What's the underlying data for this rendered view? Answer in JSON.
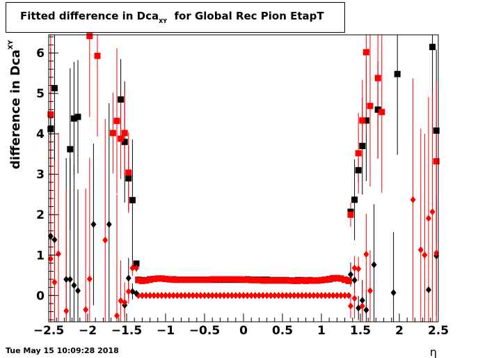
{
  "title": {
    "main": "Fitted difference in Dca",
    "sub": "XY",
    "suffix": "  for Global Rec Pion EtapT"
  },
  "timestamp": "Tue May 15 10:09:28 2018",
  "chart_data": {
    "type": "scatter",
    "xlabel": "η",
    "ylabel": {
      "main": "difference in Dca",
      "sub": "XY"
    },
    "xlim": [
      -2.5,
      2.5
    ],
    "ylim": [
      -0.65,
      6.45
    ],
    "x_ticks": [
      -2.5,
      -2,
      -1.5,
      -1,
      -0.5,
      0,
      0.5,
      1,
      1.5,
      2,
      2.5
    ],
    "x_tick_labels": [
      "−2.5",
      "−2",
      "−1.5",
      "−1",
      "−0.5",
      "0",
      "0.5",
      "1",
      "1.5",
      "2",
      "2.5"
    ],
    "y_ticks": [
      0,
      1,
      2,
      3,
      4,
      5,
      6
    ],
    "y_tick_labels": [
      "0",
      "1",
      "2",
      "3",
      "4",
      "5",
      "6"
    ],
    "grid": false,
    "colors": {
      "series_black": "#000000",
      "series_red": "#ff0000"
    },
    "series": [
      {
        "marker": "square",
        "color": "#000000",
        "points": [
          {
            "x": -2.475,
            "y": 4.12,
            "err": 2.0
          },
          {
            "x": -2.425,
            "y": 5.13,
            "err": 2.0
          },
          {
            "x": -2.225,
            "y": 3.62,
            "err": 2.0
          },
          {
            "x": -2.175,
            "y": 4.38,
            "err": 1.4
          },
          {
            "x": -2.125,
            "y": 4.42,
            "err": 1.4
          },
          {
            "x": -1.575,
            "y": 4.85,
            "err": 1.0
          },
          {
            "x": -1.525,
            "y": 3.8,
            "err": 1.5
          },
          {
            "x": -1.475,
            "y": 2.9,
            "err": 0.8
          },
          {
            "x": -1.425,
            "y": 2.36,
            "err": 1.5
          },
          {
            "x": -1.375,
            "y": 0.79,
            "err": 0.05
          },
          {
            "x": 1.375,
            "y": 2.07,
            "err": 0.2
          },
          {
            "x": 1.425,
            "y": 2.37,
            "err": 1.0
          },
          {
            "x": 1.475,
            "y": 3.1,
            "err": 0.3
          },
          {
            "x": 1.525,
            "y": 3.7,
            "err": 1.2
          },
          {
            "x": 1.575,
            "y": 4.33,
            "err": 1.5
          },
          {
            "x": 1.725,
            "y": 4.6,
            "err": 1.2
          },
          {
            "x": 1.975,
            "y": 5.48,
            "err": 2.0
          },
          {
            "x": 2.425,
            "y": 6.15,
            "err": 2.0
          },
          {
            "x": 2.475,
            "y": 4.08,
            "err": 2.0
          }
        ]
      },
      {
        "marker": "square",
        "color": "#ff0000",
        "points": [
          {
            "x": -2.475,
            "y": 4.48,
            "err": 2.0
          },
          {
            "x": -1.975,
            "y": 6.42,
            "err": 2.0
          },
          {
            "x": -1.875,
            "y": 5.93,
            "err": 2.0
          },
          {
            "x": -1.675,
            "y": 4.02,
            "err": 1.0
          },
          {
            "x": -1.625,
            "y": 4.32,
            "err": 1.8
          },
          {
            "x": -1.575,
            "y": 3.88,
            "err": 1.0
          },
          {
            "x": -1.525,
            "y": 4.02,
            "err": 1.0
          },
          {
            "x": -1.475,
            "y": 3.04,
            "err": 1.0
          },
          {
            "x": 1.375,
            "y": 2.0,
            "err": 0.3
          },
          {
            "x": 1.475,
            "y": 3.52,
            "err": 1.0
          },
          {
            "x": 1.525,
            "y": 4.33,
            "err": 1.0
          },
          {
            "x": 1.575,
            "y": 6.02,
            "err": 2.0
          },
          {
            "x": 1.625,
            "y": 4.69,
            "err": 2.0
          },
          {
            "x": 1.725,
            "y": 5.38,
            "err": 2.0
          },
          {
            "x": 1.775,
            "y": 4.54,
            "err": 2.0
          },
          {
            "x": 2.475,
            "y": 3.32,
            "err": 2.0
          }
        ]
      },
      {
        "marker": "diamond",
        "color": "#000000",
        "points": [
          {
            "x": -2.475,
            "y": 1.47,
            "err": 3.0
          },
          {
            "x": -2.425,
            "y": 1.38,
            "err": 3.0
          },
          {
            "x": -2.275,
            "y": 0.4,
            "err": 3.0
          },
          {
            "x": -2.225,
            "y": 0.4,
            "err": 3.0
          },
          {
            "x": -2.175,
            "y": 0.25,
            "err": 3.0
          },
          {
            "x": -2.125,
            "y": 0.12,
            "err": 2.5
          },
          {
            "x": -1.925,
            "y": 1.76,
            "err": 2.0
          },
          {
            "x": -1.725,
            "y": 1.76,
            "err": 3.0
          },
          {
            "x": -1.475,
            "y": 0.43,
            "err": 0.5
          },
          {
            "x": -1.425,
            "y": 0.1,
            "err": 0.2
          },
          {
            "x": -1.525,
            "y": -0.24,
            "err": 0.3
          },
          {
            "x": -1.375,
            "y": 0.05,
            "err": 0.05
          },
          {
            "x": 1.375,
            "y": 0.52,
            "err": 0.3
          },
          {
            "x": 1.425,
            "y": 0.38,
            "err": 0.3
          },
          {
            "x": 1.475,
            "y": -0.31,
            "err": 0.3
          },
          {
            "x": 1.525,
            "y": -0.12,
            "err": 0.5
          },
          {
            "x": 1.575,
            "y": -0.36,
            "err": 0.5
          },
          {
            "x": 1.675,
            "y": 0.76,
            "err": 1.5
          },
          {
            "x": 1.925,
            "y": 0.07,
            "err": 1.5
          },
          {
            "x": 2.375,
            "y": 0.14,
            "err": 2.0
          },
          {
            "x": 2.475,
            "y": 0.98,
            "err": 1.5
          }
        ]
      },
      {
        "marker": "diamond",
        "color": "#ff0000",
        "points": [
          {
            "x": -2.475,
            "y": 0.91,
            "err": 3.0
          },
          {
            "x": -2.425,
            "y": 0.33,
            "err": 3.0
          },
          {
            "x": -2.375,
            "y": 1.03,
            "err": 3.0
          },
          {
            "x": -2.275,
            "y": -0.38,
            "err": 3.0
          },
          {
            "x": -2.025,
            "y": -0.35,
            "err": 3.0
          },
          {
            "x": -1.975,
            "y": 0.41,
            "err": 3.0
          },
          {
            "x": -1.775,
            "y": 1.37,
            "err": 3.0
          },
          {
            "x": -1.625,
            "y": -0.5,
            "err": 3.0
          },
          {
            "x": -1.575,
            "y": -0.13,
            "err": 1.0
          },
          {
            "x": -1.525,
            "y": -0.17,
            "err": 0.5
          },
          {
            "x": -1.475,
            "y": 0.1,
            "err": 0.3
          },
          {
            "x": -1.425,
            "y": 0.68,
            "err": 0.2
          },
          {
            "x": -1.375,
            "y": 0.68,
            "err": 0.1
          },
          {
            "x": 1.375,
            "y": -0.26,
            "err": 0.3
          },
          {
            "x": 1.425,
            "y": -0.07,
            "err": 0.5
          },
          {
            "x": 1.425,
            "y": 0.68,
            "err": 0.3
          },
          {
            "x": 1.475,
            "y": 0.66,
            "err": 0.3
          },
          {
            "x": 1.525,
            "y": -0.26,
            "err": 0.5
          },
          {
            "x": 1.575,
            "y": 1.02,
            "err": 1.0
          },
          {
            "x": 1.625,
            "y": 0.12,
            "err": 1.0
          },
          {
            "x": 2.175,
            "y": 2.37,
            "err": 3.0
          },
          {
            "x": 2.275,
            "y": 1.13,
            "err": 3.0
          },
          {
            "x": 2.325,
            "y": 1.0,
            "err": 3.0
          },
          {
            "x": 2.375,
            "y": 1.91,
            "err": 3.0
          },
          {
            "x": 2.425,
            "y": 2.07,
            "err": 3.0
          },
          {
            "x": 2.475,
            "y": 1.05,
            "err": 3.0
          }
        ]
      }
    ],
    "central_bands": [
      {
        "marker": "square",
        "color": "#000000",
        "x_from": -1.35,
        "x_to": 1.35,
        "step": 0.05,
        "y_levels": [
          0.39,
          0.38,
          0.38,
          0.4,
          0.41,
          0.42,
          0.42,
          0.41,
          0.4,
          0.4,
          0.39,
          0.39,
          0.39,
          0.39,
          0.39,
          0.39,
          0.39,
          0.39,
          0.39,
          0.39,
          0.39,
          0.39,
          0.39,
          0.39,
          0.39,
          0.39,
          0.39,
          0.39,
          0.4,
          0.39,
          0.39,
          0.39,
          0.39,
          0.39,
          0.38,
          0.38,
          0.38,
          0.38,
          0.38,
          0.37,
          0.37,
          0.38,
          0.38,
          0.37,
          0.38,
          0.37,
          0.37,
          0.38,
          0.39,
          0.4,
          0.42,
          0.43,
          0.42,
          0.39,
          0.37
        ]
      },
      {
        "marker": "square",
        "color": "#ff0000",
        "x_from": -1.35,
        "x_to": 1.35,
        "step": 0.05,
        "y_levels": [
          0.38,
          0.36,
          0.37,
          0.39,
          0.41,
          0.42,
          0.42,
          0.41,
          0.4,
          0.39,
          0.39,
          0.39,
          0.39,
          0.39,
          0.39,
          0.39,
          0.39,
          0.39,
          0.39,
          0.4,
          0.4,
          0.4,
          0.4,
          0.4,
          0.4,
          0.4,
          0.4,
          0.39,
          0.39,
          0.38,
          0.38,
          0.38,
          0.37,
          0.37,
          0.37,
          0.37,
          0.37,
          0.37,
          0.37,
          0.37,
          0.36,
          0.36,
          0.37,
          0.36,
          0.37,
          0.37,
          0.37,
          0.38,
          0.39,
          0.41,
          0.43,
          0.43,
          0.42,
          0.39,
          0.36
        ]
      },
      {
        "marker": "diamond",
        "color": "#000000",
        "x_from": -1.35,
        "x_to": 1.35,
        "step": 0.05,
        "y_levels": [
          0.0
        ]
      },
      {
        "marker": "diamond",
        "color": "#ff0000",
        "x_from": -1.35,
        "x_to": 1.35,
        "step": 0.05,
        "y_levels": [
          0.0
        ]
      }
    ]
  }
}
